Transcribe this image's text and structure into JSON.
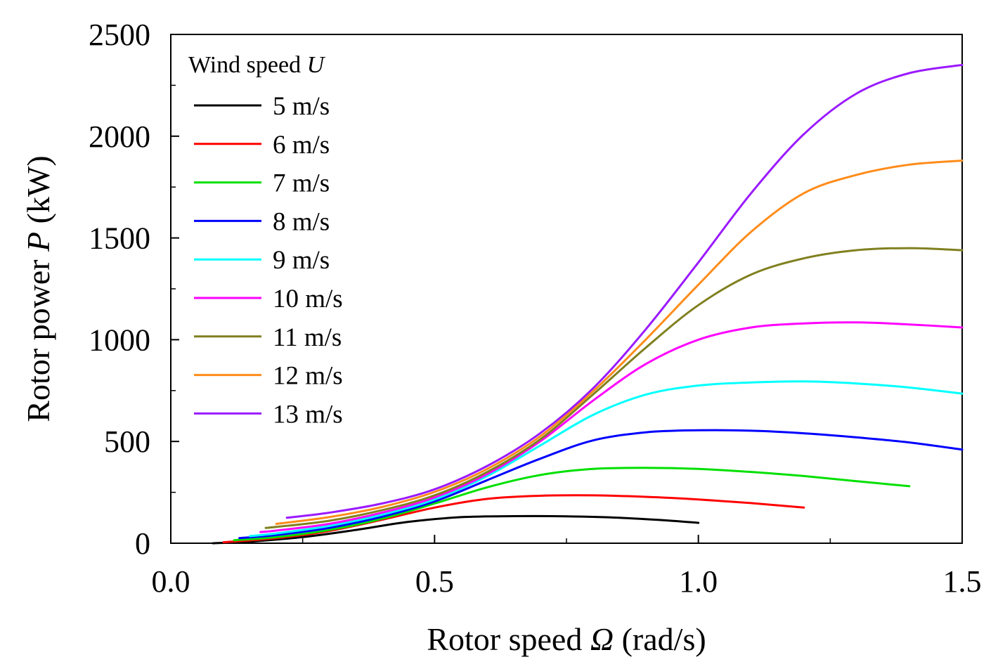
{
  "chart_data": {
    "type": "line",
    "xlabel_parts": [
      "Rotor speed ",
      "Ω",
      " (rad/s)"
    ],
    "ylabel_parts": [
      "Rotor power ",
      "P",
      " (kW)"
    ],
    "xlim": [
      0.0,
      1.5
    ],
    "ylim": [
      0,
      2500
    ],
    "xticks": [
      0.0,
      0.5,
      1.0,
      1.5
    ],
    "xtick_labels": [
      "0.0",
      "0.5",
      "1.0",
      "1.5"
    ],
    "xminor": [
      0.25,
      0.75,
      1.25
    ],
    "yticks": [
      0,
      500,
      1000,
      1500,
      2000,
      2500
    ],
    "ytick_labels": [
      "0",
      "500",
      "1000",
      "1500",
      "2000",
      "2500"
    ],
    "yminor": [
      250,
      750,
      1250,
      1750,
      2250
    ],
    "grid": false,
    "legend": {
      "position": "top-left",
      "title_parts": [
        "Wind speed ",
        "U"
      ]
    },
    "series": [
      {
        "name": "5 m/s",
        "color": "#000000",
        "x": [
          0.08,
          0.15,
          0.25,
          0.35,
          0.45,
          0.55,
          0.65,
          0.75,
          0.85,
          0.95,
          1.0
        ],
        "y": [
          0,
          8,
          30,
          65,
          105,
          128,
          133,
          132,
          125,
          110,
          100
        ]
      },
      {
        "name": "6 m/s",
        "color": "#ff0000",
        "x": [
          0.1,
          0.2,
          0.3,
          0.4,
          0.5,
          0.6,
          0.7,
          0.8,
          0.9,
          1.0,
          1.1,
          1.2
        ],
        "y": [
          5,
          25,
          60,
          115,
          175,
          218,
          233,
          235,
          228,
          215,
          197,
          175
        ]
      },
      {
        "name": "7 m/s",
        "color": "#00e000",
        "x": [
          0.12,
          0.2,
          0.3,
          0.4,
          0.5,
          0.6,
          0.7,
          0.8,
          0.9,
          1.0,
          1.1,
          1.2,
          1.3,
          1.4
        ],
        "y": [
          15,
          30,
          65,
          120,
          195,
          275,
          335,
          365,
          370,
          365,
          350,
          330,
          305,
          280
        ]
      },
      {
        "name": "8 m/s",
        "color": "#0000ff",
        "x": [
          0.13,
          0.2,
          0.3,
          0.4,
          0.5,
          0.6,
          0.7,
          0.8,
          0.9,
          1.0,
          1.1,
          1.2,
          1.3,
          1.4,
          1.5
        ],
        "y": [
          25,
          40,
          75,
          130,
          205,
          310,
          415,
          505,
          545,
          555,
          553,
          540,
          520,
          495,
          460
        ]
      },
      {
        "name": "9 m/s",
        "color": "#00ffff",
        "x": [
          0.15,
          0.2,
          0.3,
          0.4,
          0.5,
          0.6,
          0.7,
          0.8,
          0.9,
          1.0,
          1.1,
          1.2,
          1.3,
          1.4,
          1.5
        ],
        "y": [
          35,
          48,
          85,
          140,
          215,
          330,
          480,
          630,
          730,
          775,
          790,
          795,
          785,
          765,
          735
        ]
      },
      {
        "name": "10 m/s",
        "color": "#ff00ff",
        "x": [
          0.17,
          0.2,
          0.3,
          0.4,
          0.5,
          0.6,
          0.7,
          0.8,
          0.9,
          1.0,
          1.1,
          1.2,
          1.3,
          1.4,
          1.5
        ],
        "y": [
          55,
          62,
          95,
          150,
          225,
          340,
          500,
          700,
          880,
          1000,
          1060,
          1080,
          1085,
          1075,
          1060
        ]
      },
      {
        "name": "11 m/s",
        "color": "#808020",
        "x": [
          0.18,
          0.2,
          0.3,
          0.4,
          0.5,
          0.6,
          0.7,
          0.8,
          0.9,
          1.0,
          1.1,
          1.2,
          1.3,
          1.4,
          1.5
        ],
        "y": [
          75,
          80,
          110,
          162,
          235,
          350,
          510,
          730,
          960,
          1170,
          1320,
          1400,
          1440,
          1450,
          1440
        ]
      },
      {
        "name": "12 m/s",
        "color": "#ff8c1a",
        "x": [
          0.2,
          0.3,
          0.4,
          0.5,
          0.6,
          0.7,
          0.8,
          0.9,
          1.0,
          1.1,
          1.2,
          1.3,
          1.4,
          1.5
        ],
        "y": [
          95,
          128,
          178,
          252,
          365,
          525,
          745,
          1000,
          1270,
          1530,
          1720,
          1810,
          1860,
          1880
        ]
      },
      {
        "name": "13 m/s",
        "color": "#9b1aff",
        "x": [
          0.22,
          0.3,
          0.4,
          0.5,
          0.6,
          0.7,
          0.8,
          0.9,
          1.0,
          1.1,
          1.2,
          1.3,
          1.4,
          1.5
        ],
        "y": [
          125,
          150,
          195,
          265,
          380,
          540,
          760,
          1050,
          1380,
          1720,
          2010,
          2210,
          2310,
          2350
        ]
      }
    ]
  }
}
